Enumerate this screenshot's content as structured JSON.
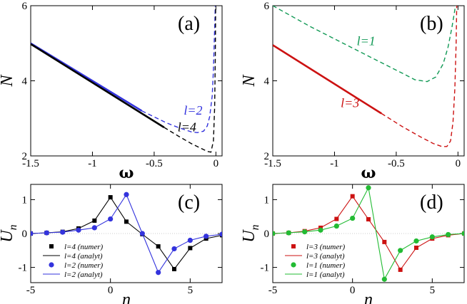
{
  "chart_data": [
    {
      "panel": "(a)",
      "type": "line",
      "xlabel": "ω",
      "ylabel": "N",
      "xlim": [
        -1.5,
        0.05
      ],
      "ylim": [
        2,
        6
      ],
      "xticks": [
        -1.5,
        -1,
        -0.5,
        0
      ],
      "xtick_labels": [
        "-1.5",
        "-1",
        "-0.5",
        "0"
      ],
      "yticks": [
        2,
        4,
        6
      ],
      "ytick_labels": [
        "2",
        "4",
        "6"
      ],
      "curve_labels": [
        {
          "text": "l=2",
          "color": "#3333dd",
          "x": -0.26,
          "y": 3.1
        },
        {
          "text": "l=4",
          "color": "#000000",
          "x": -0.31,
          "y": 2.65
        }
      ],
      "series": [
        {
          "name": "l=2",
          "color": "#3333dd",
          "style": "solid",
          "x": [
            -1.5,
            -0.6
          ],
          "y": [
            5.0,
            3.2
          ]
        },
        {
          "name": "l=2",
          "color": "#3333dd",
          "style": "dashed",
          "x": [
            -0.6,
            -0.4,
            -0.3,
            -0.2,
            -0.15,
            -0.1,
            -0.07,
            -0.05,
            -0.03,
            -0.02,
            -0.01,
            -0.005
          ],
          "y": [
            3.2,
            2.88,
            2.75,
            2.64,
            2.62,
            2.66,
            2.8,
            3.05,
            3.6,
            4.3,
            5.4,
            6.0
          ]
        },
        {
          "name": "l=4",
          "color": "#000000",
          "style": "solid",
          "x": [
            -1.5,
            -0.42
          ],
          "y": [
            4.98,
            2.76
          ]
        },
        {
          "name": "l=4",
          "color": "#000000",
          "style": "dashed",
          "x": [
            -0.42,
            -0.3,
            -0.2,
            -0.12,
            -0.07,
            -0.04,
            -0.02,
            -0.01,
            -0.005,
            -0.002
          ],
          "y": [
            2.76,
            2.52,
            2.33,
            2.2,
            2.12,
            2.1,
            2.4,
            3.3,
            4.6,
            6.0
          ]
        }
      ]
    },
    {
      "panel": "(b)",
      "type": "line",
      "xlabel": "ω",
      "ylabel": "N",
      "xlim": [
        -1.5,
        0.05
      ],
      "ylim": [
        2,
        6
      ],
      "xticks": [
        -1.5,
        -1,
        -0.5,
        0
      ],
      "xtick_labels": [
        "-1.5",
        "-1",
        "-0.5",
        "0"
      ],
      "yticks": [
        2,
        4,
        6
      ],
      "ytick_labels": [
        "2",
        "4",
        "6"
      ],
      "curve_labels": [
        {
          "text": "l=1",
          "color": "#119955",
          "x": -0.82,
          "y": 4.95
        },
        {
          "text": "l=3",
          "color": "#cc1111",
          "x": -0.95,
          "y": 3.3
        }
      ],
      "series": [
        {
          "name": "l=1",
          "color": "#119955",
          "style": "dashed",
          "x": [
            -1.5,
            -1.2,
            -0.9,
            -0.6,
            -0.45,
            -0.35,
            -0.25,
            -0.18,
            -0.12,
            -0.08,
            -0.05,
            -0.03,
            -0.02
          ],
          "y": [
            6.0,
            5.45,
            4.95,
            4.45,
            4.2,
            4.03,
            3.98,
            4.1,
            4.45,
            4.9,
            5.4,
            5.8,
            6.0
          ]
        },
        {
          "name": "l=3",
          "color": "#cc1111",
          "style": "solid",
          "x": [
            -1.5,
            -0.62
          ],
          "y": [
            4.95,
            3.13
          ]
        },
        {
          "name": "l=3",
          "color": "#cc1111",
          "style": "dashed",
          "x": [
            -0.62,
            -0.45,
            -0.3,
            -0.2,
            -0.13,
            -0.09,
            -0.06,
            -0.04,
            -0.025,
            -0.015,
            -0.01
          ],
          "y": [
            3.13,
            2.78,
            2.5,
            2.33,
            2.25,
            2.25,
            2.4,
            2.9,
            3.8,
            5.0,
            6.0
          ]
        }
      ]
    },
    {
      "panel": "(c)",
      "type": "line",
      "xlabel": "n",
      "ylabel": "U",
      "ylabel_sub": "n",
      "xlim": [
        -5,
        7
      ],
      "ylim": [
        -1.45,
        1.45
      ],
      "xticks": [
        -5,
        0,
        5
      ],
      "xtick_labels": [
        "-5",
        "0",
        "5"
      ],
      "yticks": [
        -1,
        0,
        1
      ],
      "ytick_labels": [
        "-1",
        "0",
        "1"
      ],
      "legend": [
        "l=4 (numer)",
        "l=4 (analyt)",
        "l=2 (numer)",
        "l=2 (analyt)"
      ],
      "series": [
        {
          "name": "l=4",
          "color": "#000000",
          "marker": "square",
          "x": [
            -5,
            -4,
            -3,
            -2,
            -1,
            0,
            1,
            2,
            3,
            4,
            5,
            6,
            7
          ],
          "y": [
            0.0,
            0.02,
            0.05,
            0.15,
            0.38,
            1.07,
            0.35,
            -0.02,
            -0.38,
            -1.05,
            -0.43,
            -0.15,
            -0.05
          ]
        },
        {
          "name": "l=2",
          "color": "#3333dd",
          "marker": "circle",
          "x": [
            -5,
            -4,
            -3,
            -2,
            -1,
            0,
            1,
            2,
            3,
            4,
            5,
            6,
            7
          ],
          "y": [
            0.0,
            0.02,
            0.04,
            0.1,
            0.17,
            0.43,
            1.15,
            0.0,
            -1.15,
            -0.45,
            -0.2,
            -0.08,
            -0.02
          ]
        }
      ]
    },
    {
      "panel": "(d)",
      "type": "line",
      "xlabel": "n",
      "ylabel": "U",
      "ylabel_sub": "n",
      "xlim": [
        -5,
        7
      ],
      "ylim": [
        -1.45,
        1.45
      ],
      "xticks": [
        -5,
        0,
        5
      ],
      "xtick_labels": [
        "-5",
        "0",
        "5"
      ],
      "yticks": [
        -1,
        0,
        1
      ],
      "ytick_labels": [
        "-1",
        "0",
        "1"
      ],
      "legend": [
        "l=3 (numer)",
        "l=3 (analyt)",
        "l=1 (numer)",
        "l=1 (analyt)"
      ],
      "series": [
        {
          "name": "l=3",
          "color": "#cc1111",
          "marker": "square",
          "x": [
            -5,
            -4,
            -3,
            -2,
            -1,
            0,
            1,
            2,
            3,
            4,
            5,
            6,
            7
          ],
          "y": [
            0.0,
            0.02,
            0.07,
            0.17,
            0.43,
            1.1,
            0.42,
            -0.25,
            -1.07,
            -0.42,
            -0.15,
            -0.05,
            0.0
          ]
        },
        {
          "name": "l=1",
          "color": "#22bb33",
          "marker": "circle",
          "x": [
            -5,
            -4,
            -3,
            -2,
            -1,
            0,
            1,
            2,
            3,
            4,
            5,
            6,
            7
          ],
          "y": [
            0.0,
            0.02,
            0.05,
            0.1,
            0.22,
            0.45,
            1.35,
            -1.35,
            -0.5,
            -0.22,
            -0.1,
            -0.03,
            0.0
          ]
        }
      ]
    }
  ]
}
